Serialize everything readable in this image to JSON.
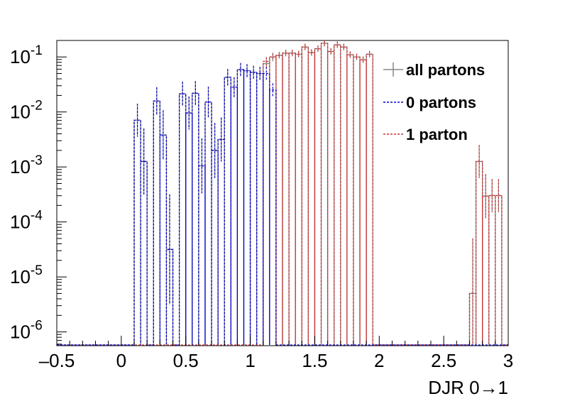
{
  "chart_data": {
    "type": "line",
    "xlabel": "DJR 0→1",
    "ylabel": "",
    "xlim": [
      -0.5,
      3.0
    ],
    "ylim_log10": [
      -6.25,
      -0.7
    ],
    "log_y": true,
    "grid": false,
    "legend": {
      "position": "top-right",
      "entries": [
        "all partons",
        "0 partons",
        "1 parton"
      ]
    },
    "x_ticks": [
      "-0.5",
      "0",
      "0.5",
      "1",
      "1.5",
      "2",
      "2.5",
      "3"
    ],
    "y_ticks": [
      {
        "base": "10",
        "exp": "-6",
        "value": -6
      },
      {
        "base": "10",
        "exp": "-5",
        "value": -5
      },
      {
        "base": "10",
        "exp": "-4",
        "value": -4
      },
      {
        "base": "10",
        "exp": "-3",
        "value": -3
      },
      {
        "base": "10",
        "exp": "-2",
        "value": -2
      },
      {
        "base": "10",
        "exp": "-1",
        "value": -1
      }
    ],
    "bin_width": 0.05,
    "series": [
      {
        "name": "all partons",
        "color": "#888888",
        "style": "solid",
        "points": [
          [
            0.125,
            -2.15,
            0.3
          ],
          [
            0.175,
            -2.9,
            0.6
          ],
          [
            0.275,
            -1.8,
            0.25
          ],
          [
            0.325,
            -2.42,
            0.45
          ],
          [
            0.375,
            -4.5,
            1
          ],
          [
            0.475,
            -1.67,
            0.22
          ],
          [
            0.525,
            -2.02,
            0.3
          ],
          [
            0.575,
            -1.66,
            0.22
          ],
          [
            0.625,
            -2.98,
            0.5
          ],
          [
            0.675,
            -1.82,
            0.28
          ],
          [
            0.725,
            -2.7,
            0.5
          ],
          [
            0.775,
            -2.5,
            0.4
          ],
          [
            0.825,
            -1.37,
            0.15
          ],
          [
            0.875,
            -1.55,
            0.18
          ],
          [
            0.925,
            -1.23,
            0.12
          ],
          [
            0.975,
            -1.25,
            0.12
          ],
          [
            1.025,
            -1.28,
            0.12
          ],
          [
            1.075,
            -1.3,
            0.12
          ],
          [
            1.125,
            -1.12,
            0.1
          ],
          [
            1.175,
            -1.0,
            0.08
          ],
          [
            1.225,
            -0.97,
            0.06
          ],
          [
            1.275,
            -0.93,
            0.06
          ],
          [
            1.325,
            -0.93,
            0.06
          ],
          [
            1.375,
            -0.95,
            0.06
          ],
          [
            1.425,
            -0.82,
            0.06
          ],
          [
            1.475,
            -0.92,
            0.06
          ],
          [
            1.525,
            -0.85,
            0.06
          ],
          [
            1.575,
            -0.75,
            0.06
          ],
          [
            1.625,
            -0.9,
            0.06
          ],
          [
            1.675,
            -0.78,
            0.06
          ],
          [
            1.725,
            -0.82,
            0.06
          ],
          [
            1.775,
            -0.96,
            0.06
          ],
          [
            1.825,
            -1.0,
            0.06
          ],
          [
            1.875,
            -1.05,
            0.06
          ],
          [
            1.925,
            -0.95,
            0.06
          ],
          [
            2.725,
            -5.3,
            1
          ],
          [
            2.775,
            -2.9,
            0.3
          ],
          [
            2.825,
            -3.53,
            0.4
          ],
          [
            2.875,
            -3.52,
            0.3
          ],
          [
            2.925,
            -3.52,
            0.3
          ]
        ]
      },
      {
        "name": "0 partons",
        "color": "#0000cc",
        "style": "dashed",
        "points": [
          [
            0.125,
            -2.15,
            0.3
          ],
          [
            0.175,
            -2.9,
            0.6
          ],
          [
            0.275,
            -1.8,
            0.25
          ],
          [
            0.325,
            -2.42,
            0.45
          ],
          [
            0.375,
            -4.5,
            1
          ],
          [
            0.475,
            -1.67,
            0.22
          ],
          [
            0.525,
            -2.02,
            0.3
          ],
          [
            0.575,
            -1.66,
            0.22
          ],
          [
            0.625,
            -2.98,
            0.5
          ],
          [
            0.675,
            -1.82,
            0.28
          ],
          [
            0.725,
            -2.7,
            0.5
          ],
          [
            0.775,
            -2.5,
            0.4
          ],
          [
            0.825,
            -1.37,
            0.15
          ],
          [
            0.875,
            -1.55,
            0.18
          ],
          [
            0.925,
            -1.23,
            0.12
          ],
          [
            0.975,
            -1.25,
            0.12
          ],
          [
            1.025,
            -1.28,
            0.12
          ],
          [
            1.075,
            -1.3,
            0.12
          ],
          [
            1.125,
            -1.3,
            0.12
          ],
          [
            1.175,
            -1.6,
            0.12
          ]
        ]
      },
      {
        "name": "1 parton",
        "color": "#cc3333",
        "style": "dashed",
        "points": [
          [
            1.125,
            -1.08,
            0.08
          ],
          [
            1.175,
            -1.0,
            0.06
          ],
          [
            1.225,
            -0.97,
            0.06
          ],
          [
            1.275,
            -0.93,
            0.06
          ],
          [
            1.325,
            -0.93,
            0.06
          ],
          [
            1.375,
            -0.95,
            0.06
          ],
          [
            1.425,
            -0.82,
            0.06
          ],
          [
            1.475,
            -0.92,
            0.06
          ],
          [
            1.525,
            -0.85,
            0.06
          ],
          [
            1.575,
            -0.75,
            0.06
          ],
          [
            1.625,
            -0.9,
            0.06
          ],
          [
            1.675,
            -0.78,
            0.06
          ],
          [
            1.725,
            -0.82,
            0.06
          ],
          [
            1.775,
            -0.96,
            0.06
          ],
          [
            1.825,
            -1.0,
            0.06
          ],
          [
            1.875,
            -1.05,
            0.06
          ],
          [
            1.925,
            -0.95,
            0.06
          ],
          [
            2.725,
            -5.3,
            1
          ],
          [
            2.775,
            -2.9,
            0.3
          ],
          [
            2.825,
            -3.53,
            0.4
          ],
          [
            2.875,
            -3.52,
            0.3
          ],
          [
            2.925,
            -3.52,
            0.3
          ]
        ]
      }
    ]
  }
}
